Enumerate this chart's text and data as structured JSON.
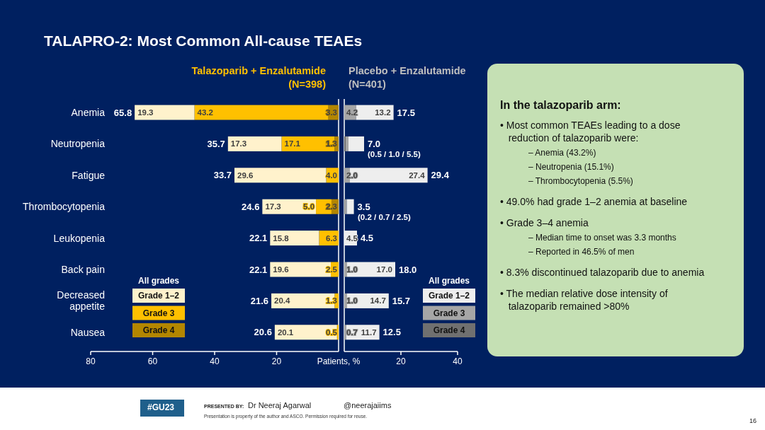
{
  "chart_data": [
    {
      "type": "bar",
      "orientation": "horizontal",
      "stacked": true,
      "title": "TALAPRO-2: Most Common All-cause TEAEs",
      "subtitle": "Talazoparib + Enzalutamide (N=398)",
      "xlabel": "Patients, %",
      "categories": [
        "Anemia",
        "Neutropenia",
        "Fatigue",
        "Thrombocytopenia",
        "Leukopenia",
        "Back pain",
        "Decreased appetite",
        "Nausea"
      ],
      "xlim": [
        80,
        0
      ],
      "xticks": [
        80,
        60,
        40,
        20
      ],
      "legend": "bottom left",
      "legend_title": "All grades",
      "totals": [
        "65.8",
        "35.7",
        "33.7",
        "24.6",
        "22.1",
        "22.1",
        "21.6",
        "20.6"
      ],
      "series": [
        {
          "name": "Grade 4",
          "color": "#b38600",
          "values": [
            3.3,
            1.3,
            null,
            2.3,
            null,
            null,
            null,
            null
          ],
          "value_labels": [
            "3.3",
            "1.3",
            null,
            "2.3",
            null,
            null,
            null,
            null
          ]
        },
        {
          "name": "Grade 3",
          "color": "#ffc000",
          "values": [
            43.2,
            17.1,
            4.0,
            5.0,
            6.3,
            2.5,
            1.3,
            0.5
          ],
          "value_labels": [
            "43.2",
            "17.1",
            "4.0",
            "5.0",
            "6.3",
            "2.5",
            "1.3",
            "0.5"
          ]
        },
        {
          "name": "Grade 1–2",
          "color": "#fff2cc",
          "values": [
            19.3,
            17.3,
            29.6,
            17.3,
            15.8,
            19.6,
            20.4,
            20.1
          ],
          "value_labels": [
            "19.3",
            "17.3",
            "29.6",
            "17.3",
            "15.8",
            "19.6",
            "20.4",
            "20.1"
          ]
        }
      ],
      "annotations": [
        "PRESENTED BY:",
        "Dr Neeraj Agarwal",
        "#GU23",
        "@neerajaiims",
        "Presentation is property of the author and ASCO. Permission required for reuse.",
        "16"
      ]
    },
    {
      "type": "bar",
      "orientation": "horizontal",
      "stacked": true,
      "title": "Placebo + Enzalutamide (N=401)",
      "categories": [
        "Anemia",
        "Neutropenia",
        "Fatigue",
        "Thrombocytopenia",
        "Leukopenia",
        "Back pain",
        "Decreased appetite",
        "Nausea"
      ],
      "xlim": [
        0,
        40
      ],
      "xticks": [
        20,
        40
      ],
      "tick_labels": "x",
      "legend": "bottom right",
      "legend_title": "All grades",
      "totals": [
        "17.5",
        "7.0",
        "29.4",
        "3.5",
        "4.5",
        "18.0",
        "15.7",
        "12.5"
      ],
      "series": [
        {
          "name": "Grade 4",
          "color": "#707070",
          "values": [
            null,
            0.5,
            null,
            0.2,
            null,
            null,
            null,
            null
          ],
          "value_labels": [
            null,
            null,
            null,
            null,
            null,
            null,
            null,
            null
          ]
        },
        {
          "name": "Grade 3",
          "color": "#a6a6a6",
          "values": [
            4.2,
            1.0,
            2.0,
            0.7,
            null,
            1.0,
            1.0,
            0.7
          ],
          "value_labels": [
            "4.2",
            null,
            "2.0",
            null,
            null,
            "1.0",
            "1.0",
            "0.7"
          ]
        },
        {
          "name": "Grade 1–2",
          "color": "#eeeeee",
          "values": [
            13.2,
            5.5,
            27.4,
            2.5,
            4.5,
            17.0,
            14.7,
            11.7
          ],
          "value_labels": [
            "13.2",
            null,
            "27.4",
            null,
            "4.5",
            "17.0",
            "14.7",
            "11.7"
          ]
        }
      ],
      "annotations": [
        {
          "text": "(0.5 / 1.0 / 5.5)",
          "x": 7.0,
          "y": "Neutropenia"
        },
        {
          "text": "(0.2 / 0.7 / 2.5)",
          "x": 3.5,
          "y": "Thrombocytopenia"
        }
      ]
    },
    {
      "type": "other",
      "title": "In the talazoparib arm:",
      "annotations": [
        "• Most common TEAEs leading to a dose reduction of talazoparib were:",
        "– Anemia (43.2%)",
        "– Neutropenia (15.1%)",
        "– Thrombocytopenia (5.5%)",
        "• 49.0% had grade 1–2 anemia at baseline",
        "• Grade 3–4 anemia",
        "– Median time to onset was 3.3 months",
        "– Reported in 46.5% of men",
        "• 8.3% discontinued talazoparib due to anemia",
        "• The median relative dose intensity of talazoparib remained >80%"
      ]
    }
  ]
}
